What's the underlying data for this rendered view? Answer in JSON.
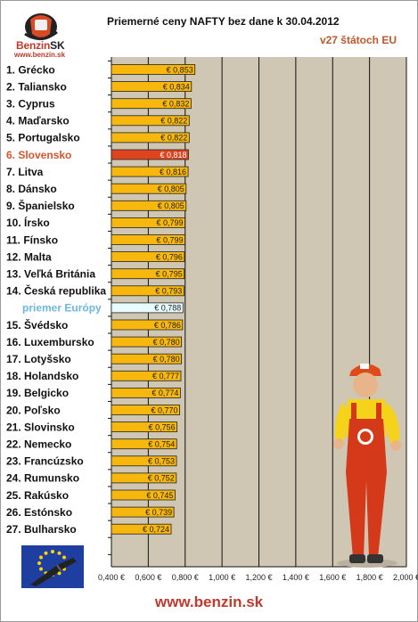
{
  "logo": {
    "brand": "Benzin",
    "brand_suffix": "SK",
    "url": "www.benzin.sk"
  },
  "footer": {
    "url": "www.benzin.sk"
  },
  "colors": {
    "bar": "#f7b70c",
    "bar_highlight": "#e0441e",
    "bar_average": "#e8fbff",
    "plot_bg": "#cfc6b4"
  },
  "chart_data": {
    "type": "bar",
    "orientation": "horizontal",
    "title": "Priemerné ceny NAFTY bez dane k 30.04.2012",
    "subtitle": "v27 štátoch EU",
    "xlim": [
      0.4,
      2.0
    ],
    "x_ticks": [
      "0,400 €",
      "0,600 €",
      "0,800 €",
      "1,000 €",
      "1,200 €",
      "1,400 €",
      "1,600 €",
      "1,800 €",
      "2,000 €"
    ],
    "grid": true,
    "categories": [
      "1. Grécko",
      "2. Taliansko",
      "3. Cyprus",
      "4. Maďarsko",
      "5. Portugalsko",
      "6. Slovensko",
      "7. Litva",
      "8. Dánsko",
      "9. Španielsko",
      "10. Írsko",
      "11. Fínsko",
      "12. Malta",
      "13. Veľká Británia",
      "14. Česká republika",
      "priemer Európy",
      "15. Švédsko",
      "16. Luxembursko",
      "17. Lotyšsko",
      "18. Holandsko",
      "19. Belgicko",
      "20. Poľsko",
      "21. Slovinsko",
      "22. Nemecko",
      "23. Francúzsko",
      "24. Rumunsko",
      "25. Rakúsko",
      "26. Estónsko",
      "27. Bulharsko"
    ],
    "values": [
      0.853,
      0.834,
      0.832,
      0.822,
      0.822,
      0.818,
      0.816,
      0.805,
      0.805,
      0.799,
      0.799,
      0.796,
      0.795,
      0.793,
      0.788,
      0.786,
      0.78,
      0.78,
      0.777,
      0.774,
      0.77,
      0.756,
      0.754,
      0.753,
      0.752,
      0.745,
      0.739,
      0.724
    ],
    "value_labels": [
      "€ 0,853",
      "€ 0,834",
      "€ 0,832",
      "€ 0,822",
      "€ 0,822",
      "€ 0,818",
      "€ 0,816",
      "€ 0,805",
      "€ 0,805",
      "€ 0,799",
      "€ 0,799",
      "€ 0,796",
      "€ 0,795",
      "€ 0,793",
      "€ 0,788",
      "€ 0,786",
      "€ 0,780",
      "€ 0,780",
      "€ 0,777",
      "€ 0,774",
      "€ 0,770",
      "€ 0,756",
      "€ 0,754",
      "€ 0,753",
      "€ 0,752",
      "€ 0,745",
      "€ 0,739",
      "€ 0,724"
    ],
    "highlight_category": "6. Slovensko",
    "average_category": "priemer Európy"
  }
}
